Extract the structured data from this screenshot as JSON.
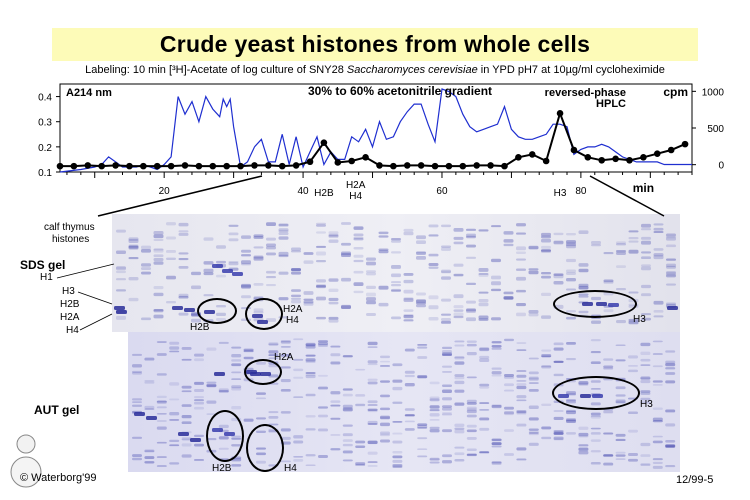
{
  "title": "Crude yeast histones from whole cells",
  "subtitle": {
    "prefix": "Labeling: 10 min [³H]-Acetate of log culture of SNY28 ",
    "species": "Saccharomyces cerevisiae",
    "suffix": " in YPD pH7 at 10µg/ml cycloheximide"
  },
  "chart_data": {
    "type": "line",
    "left_axis_label": "A214 nm",
    "right_axis_label": "cpm",
    "x_unit_label": "min",
    "annotation_gradient": "30% to 60% acetonitrile gradient",
    "annotation_method_1": "reversed-phase",
    "annotation_method_2": "HPLC",
    "xlim": [
      5,
      96
    ],
    "ylim_left": [
      0.1,
      0.45
    ],
    "ylim_right": [
      -100,
      1100
    ],
    "x_ticks": [
      20,
      40,
      60,
      80
    ],
    "y_ticks_left": [
      0.1,
      0.2,
      0.3,
      0.4
    ],
    "y_ticks_left_labels": [
      "0.1",
      "0.2",
      "0.3",
      "0.4"
    ],
    "y_ticks_right": [
      0,
      500,
      1000
    ],
    "y_ticks_right_labels": [
      "0",
      "500",
      "1000"
    ],
    "peak_labels": [
      {
        "x": 43,
        "text": "H2B"
      },
      {
        "x": 47,
        "text": "H2A"
      },
      {
        "x": 47,
        "text": "H4"
      },
      {
        "x": 77,
        "text": "H3"
      }
    ],
    "series": [
      {
        "axis": "left",
        "color": "#1f2fd0",
        "marker": false,
        "x": [
          5,
          8,
          10,
          11,
          12,
          13,
          14,
          15,
          16,
          17,
          18,
          19,
          20,
          21,
          22,
          23,
          24,
          25,
          26,
          27,
          28,
          28.5,
          29,
          29.5,
          30,
          31,
          32,
          33,
          34,
          35,
          36,
          37,
          38,
          39,
          40,
          41,
          42,
          43,
          44,
          45,
          46,
          47,
          48,
          49,
          50,
          51,
          52,
          53,
          54,
          55,
          56,
          57,
          58,
          59,
          60,
          61,
          62,
          63,
          64,
          65,
          66,
          67,
          68,
          69,
          70,
          71,
          72,
          73,
          74,
          75,
          76,
          77,
          78,
          79,
          80,
          81,
          82,
          83,
          84,
          85,
          86,
          87,
          88,
          89,
          90,
          91,
          92,
          93,
          94,
          95,
          96
        ],
        "y": [
          0.1,
          0.11,
          0.12,
          0.13,
          0.16,
          0.14,
          0.12,
          0.12,
          0.12,
          0.13,
          0.12,
          0.11,
          0.13,
          0.16,
          0.4,
          0.33,
          0.38,
          0.3,
          0.4,
          0.35,
          0.32,
          0.39,
          0.36,
          0.39,
          0.28,
          0.12,
          0.14,
          0.2,
          0.23,
          0.14,
          0.14,
          0.25,
          0.13,
          0.24,
          0.12,
          0.18,
          0.24,
          0.13,
          0.18,
          0.15,
          0.15,
          0.24,
          0.22,
          0.27,
          0.2,
          0.3,
          0.23,
          0.24,
          0.3,
          0.34,
          0.37,
          0.37,
          0.29,
          0.22,
          0.43,
          0.42,
          0.4,
          0.33,
          0.28,
          0.26,
          0.27,
          0.28,
          0.29,
          0.36,
          0.27,
          0.24,
          0.23,
          0.23,
          0.24,
          0.25,
          0.29,
          0.29,
          0.28,
          0.17,
          0.19,
          0.2,
          0.2,
          0.21,
          0.2,
          0.18,
          0.16,
          0.15,
          0.14,
          0.14,
          0.14,
          0.14,
          0.13,
          0.13,
          0.13,
          0.13,
          0.13
        ]
      },
      {
        "axis": "right",
        "color": "#000000",
        "marker": true,
        "x": [
          5,
          7,
          9,
          11,
          13,
          15,
          17,
          19,
          21,
          23,
          25,
          27,
          29,
          31,
          33,
          35,
          37,
          39,
          41,
          43,
          45,
          47,
          49,
          51,
          53,
          55,
          57,
          59,
          61,
          63,
          65,
          67,
          69,
          71,
          73,
          75,
          77,
          79,
          81,
          83,
          85,
          87,
          89,
          91,
          93,
          95
        ],
        "y": [
          -20,
          -20,
          -10,
          -20,
          -10,
          -20,
          -20,
          -20,
          -20,
          -10,
          -20,
          -20,
          -20,
          -20,
          -10,
          -10,
          -20,
          -10,
          40,
          300,
          30,
          50,
          100,
          -10,
          -20,
          -10,
          -10,
          -20,
          -20,
          -20,
          -10,
          -10,
          -20,
          100,
          140,
          50,
          700,
          200,
          100,
          60,
          80,
          60,
          100,
          150,
          200,
          280
        ]
      }
    ]
  },
  "gel": {
    "calf_label_1": "calf thymus",
    "calf_label_2": "histones",
    "sds_title": "SDS gel",
    "aut_title": "AUT gel",
    "left_labels": [
      "H1",
      "H3",
      "H2B",
      "H2A",
      "H4"
    ],
    "sds_h2b": "H2B",
    "sds_h2a": "H2A",
    "sds_h4": "H4",
    "sds_h3": "H3",
    "aut_h2a": "H2A",
    "aut_h3": "H3",
    "aut_h2b": "H2B",
    "aut_h4": "H4"
  },
  "footer": {
    "credit": "© Waterborg'99",
    "slide_id": "12/99-5"
  }
}
